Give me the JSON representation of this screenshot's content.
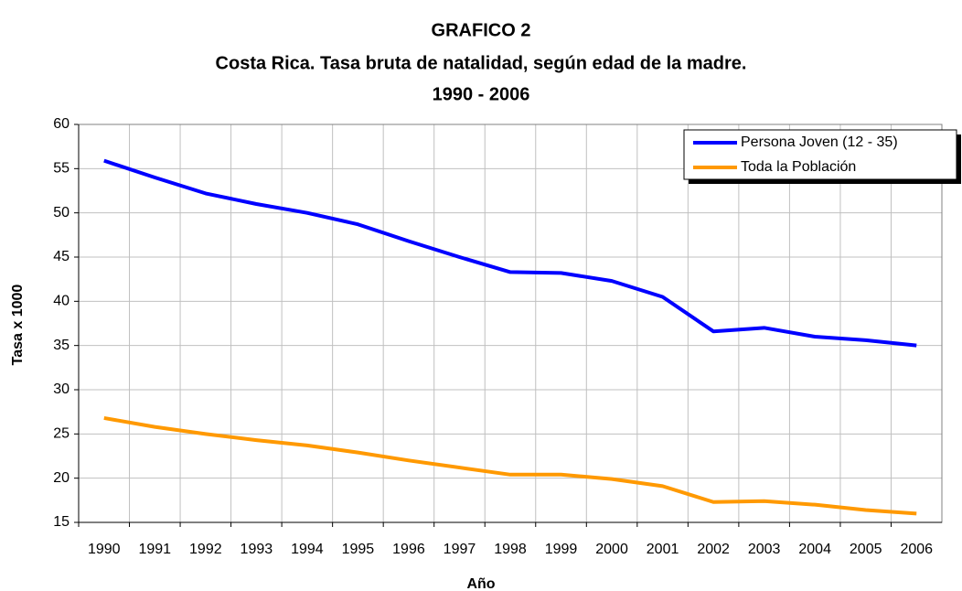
{
  "chart_data": {
    "type": "line",
    "title": "GRAFICO 2",
    "subtitle": "Costa Rica. Tasa bruta de natalidad, según  edad de la madre.",
    "period": "1990 - 2006",
    "x_label": "Año",
    "y_label": "Tasa x 1000",
    "categories": [
      "1990",
      "1991",
      "1992",
      "1993",
      "1994",
      "1995",
      "1996",
      "1997",
      "1998",
      "1999",
      "2000",
      "2001",
      "2002",
      "2003",
      "2004",
      "2005",
      "2006"
    ],
    "series": [
      {
        "name": "Persona Joven (12 - 35)",
        "color": "#0000ff",
        "values": [
          55.9,
          54.0,
          52.2,
          51.0,
          50.0,
          48.7,
          46.8,
          45.0,
          43.3,
          43.2,
          42.3,
          40.5,
          36.6,
          37.0,
          36.0,
          35.6,
          35.0
        ]
      },
      {
        "name": "Toda la Población",
        "color": "#ff9900",
        "values": [
          26.8,
          25.8,
          25.0,
          24.3,
          23.7,
          22.9,
          22.0,
          21.2,
          20.4,
          20.4,
          19.9,
          19.1,
          17.3,
          17.4,
          17.0,
          16.4,
          16.0
        ]
      }
    ],
    "ylim": [
      15,
      60
    ],
    "yticks": [
      15,
      20,
      25,
      30,
      35,
      40,
      45,
      50,
      55,
      60
    ],
    "grid": true,
    "legend": "upper right"
  }
}
